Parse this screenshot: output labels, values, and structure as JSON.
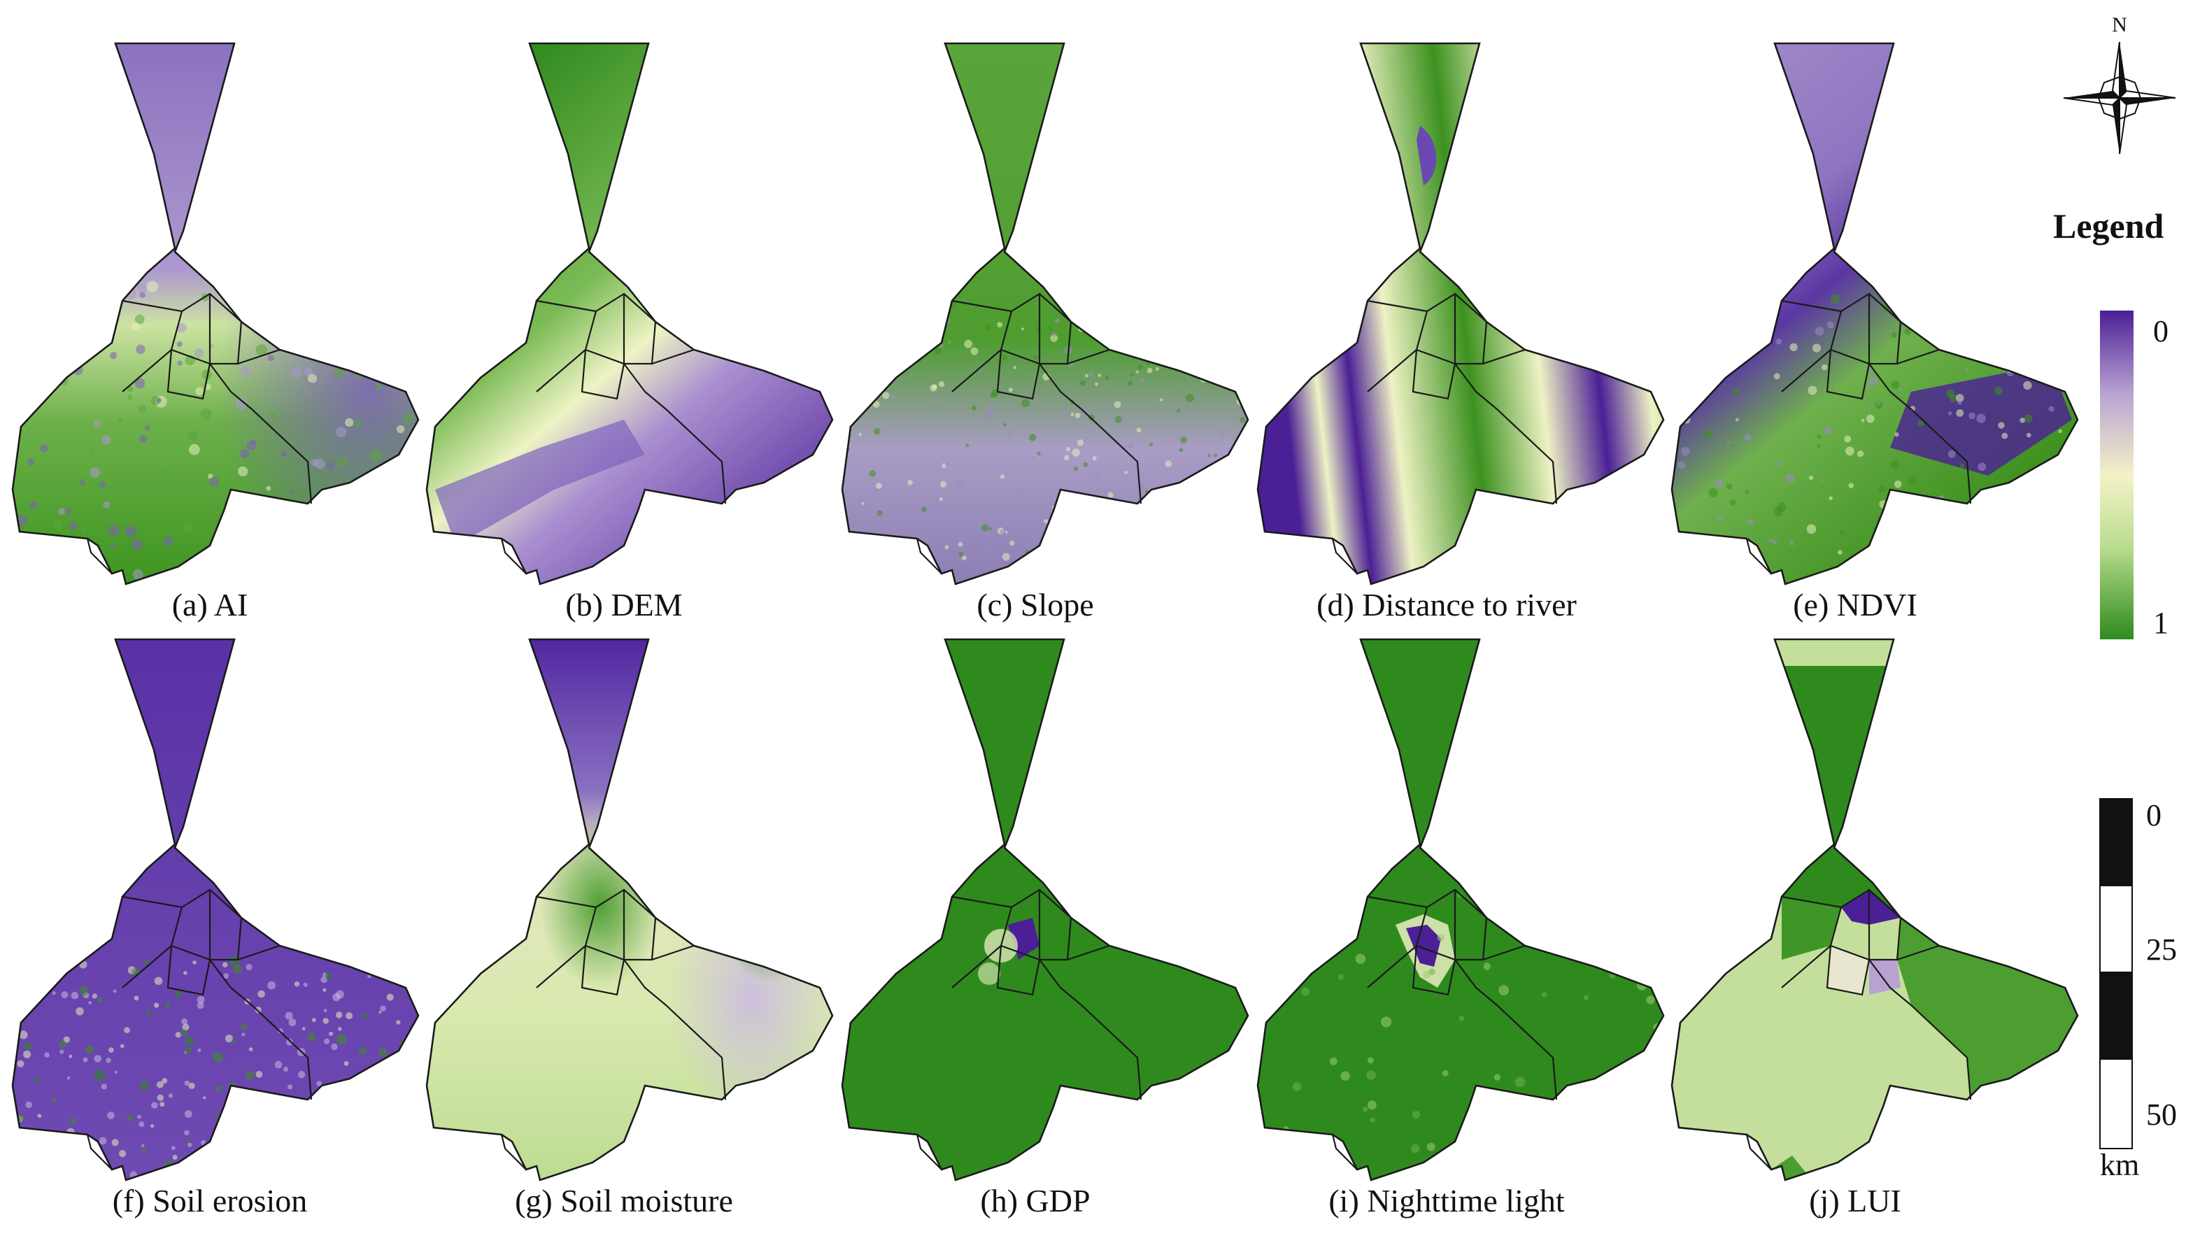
{
  "panels": [
    {
      "id": "a",
      "caption": "(a) AI",
      "fill": "ai"
    },
    {
      "id": "b",
      "caption": "(b) DEM",
      "fill": "dem"
    },
    {
      "id": "c",
      "caption": "(c) Slope",
      "fill": "slope"
    },
    {
      "id": "d",
      "caption": "(d) Distance to river",
      "fill": "river"
    },
    {
      "id": "e",
      "caption": "(e) NDVI",
      "fill": "ndvi"
    },
    {
      "id": "f",
      "caption": "(f) Soil erosion",
      "fill": "erosion"
    },
    {
      "id": "g",
      "caption": "(g) Soil moisture",
      "fill": "moisture"
    },
    {
      "id": "h",
      "caption": "(h) GDP",
      "fill": "gdp"
    },
    {
      "id": "i",
      "caption": "(i) Nighttime light",
      "fill": "light"
    },
    {
      "id": "j",
      "caption": "(j) LUI",
      "fill": "lui"
    }
  ],
  "legend": {
    "title": "Legend",
    "max_label": "0",
    "min_label": "1",
    "colors": {
      "low": "#2e8b1e",
      "mid_green": "#b9dc8e",
      "mid": "#f4f2c8",
      "mid_purple": "#b8a2d2",
      "high": "#4b1f96"
    }
  },
  "north_arrow": {
    "label": "N",
    "icon": "north-arrow-icon"
  },
  "scale_bar": {
    "ticks": [
      "0",
      "25",
      "50"
    ],
    "unit": "km"
  }
}
